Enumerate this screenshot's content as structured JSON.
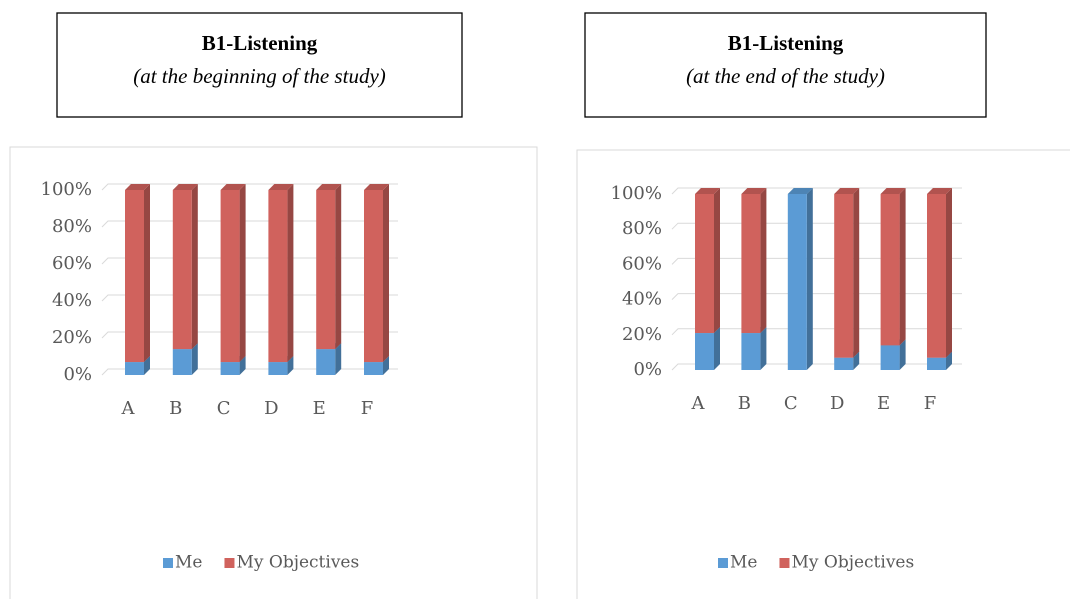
{
  "chart_data": [
    {
      "type": "bar",
      "stacked": true,
      "title": "B1-Listening",
      "subtitle": "(at the beginning of the study)",
      "categories": [
        "A",
        "B",
        "C",
        "D",
        "E",
        "F"
      ],
      "series": [
        {
          "name": "Me",
          "color": "#5b9bd5",
          "values": [
            7,
            14,
            7,
            7,
            14,
            7
          ]
        },
        {
          "name": "My Objectives",
          "color": "#d0625d",
          "values": [
            93,
            86,
            93,
            93,
            86,
            93
          ]
        }
      ],
      "ylim": [
        0,
        100
      ],
      "yticks": [
        {
          "value": 0,
          "label": "0%"
        },
        {
          "value": 20,
          "label": "20%"
        },
        {
          "value": 40,
          "label": "40%"
        },
        {
          "value": 60,
          "label": "60%"
        },
        {
          "value": 80,
          "label": "80%"
        },
        {
          "value": 100,
          "label": "100%"
        }
      ],
      "grid": true,
      "legend": "bottom"
    },
    {
      "type": "bar",
      "stacked": true,
      "title": "B1-Listening",
      "subtitle": "(at the end of the study)",
      "categories": [
        "A",
        "B",
        "C",
        "D",
        "E",
        "F"
      ],
      "series": [
        {
          "name": "Me",
          "color": "#5b9bd5",
          "values": [
            21,
            21,
            100,
            7,
            14,
            7
          ]
        },
        {
          "name": "My Objectives",
          "color": "#d0625d",
          "values": [
            79,
            79,
            0,
            93,
            86,
            93
          ]
        }
      ],
      "ylim": [
        0,
        100
      ],
      "yticks": [
        {
          "value": 0,
          "label": "0%"
        },
        {
          "value": 20,
          "label": "20%"
        },
        {
          "value": 40,
          "label": "40%"
        },
        {
          "value": 60,
          "label": "60%"
        },
        {
          "value": 80,
          "label": "80%"
        },
        {
          "value": 100,
          "label": "100%"
        }
      ],
      "grid": true,
      "legend": "bottom"
    }
  ]
}
